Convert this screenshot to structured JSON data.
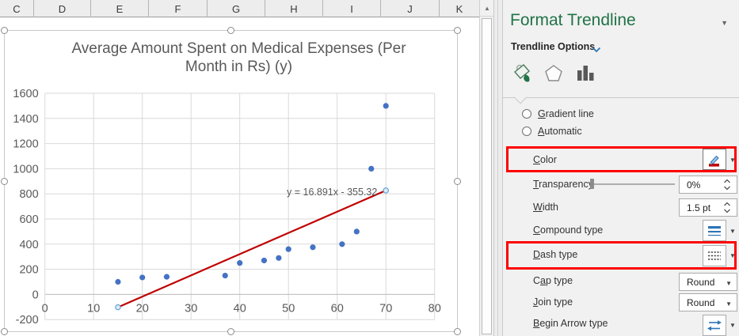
{
  "spreadsheet": {
    "column_headers": [
      "C",
      "D",
      "E",
      "F",
      "G",
      "H",
      "I",
      "J",
      "K"
    ],
    "scroll_up_arrow": "▲"
  },
  "chart": {
    "title_line1": "Average Amount Spent on Medical Expenses (Per",
    "title_line2": "Month in Rs) (y)"
  },
  "chart_data": {
    "type": "scatter",
    "title": "Average Amount Spent on Medical Expenses (Per Month in Rs) (y)",
    "points": [
      [
        15,
        100
      ],
      [
        20,
        135
      ],
      [
        25,
        140
      ],
      [
        37,
        150
      ],
      [
        40,
        250
      ],
      [
        45,
        270
      ],
      [
        48,
        290
      ],
      [
        50,
        360
      ],
      [
        55,
        375
      ],
      [
        61,
        400
      ],
      [
        64,
        500
      ],
      [
        67,
        1000
      ],
      [
        70,
        1500
      ]
    ],
    "point_color": "#4472c4",
    "xlim": [
      0,
      80
    ],
    "ylim": [
      -200,
      1600
    ],
    "x_tick_step": 10,
    "y_tick_step": 200,
    "grid": true,
    "legend": "none",
    "trendline": {
      "type": "linear",
      "slope": 16.891,
      "intercept": -355.32,
      "x_start": 15,
      "x_end": 70,
      "color": "#c00000",
      "equation": "y = 16.891x - 355.32"
    }
  },
  "panel": {
    "title": "Format Trendline",
    "section_label": "Trendline Options",
    "title_color": "#217346",
    "highlight_color": "#fe0000",
    "accent_blue": "#2e75b6",
    "radios": {
      "gradient": {
        "key": "G",
        "post": "radient line"
      },
      "automatic": {
        "key": "A",
        "post": "utomatic"
      }
    },
    "rows": {
      "color": {
        "key": "C",
        "post": "olor"
      },
      "transparency": {
        "key": "T",
        "post": "ransparency",
        "value": "0%"
      },
      "width": {
        "key": "W",
        "post": "idth",
        "value": "1.5 pt"
      },
      "compound": {
        "key": "C",
        "post": "ompound type"
      },
      "dash": {
        "key": "D",
        "post": "ash type"
      },
      "cap": {
        "pre": "C",
        "key": "a",
        "post": "p type",
        "value": "Round"
      },
      "join": {
        "key": "J",
        "post": "oin type",
        "value": "Round"
      },
      "begin_arrow": {
        "key": "B",
        "post": "egin Arrow type"
      }
    }
  }
}
